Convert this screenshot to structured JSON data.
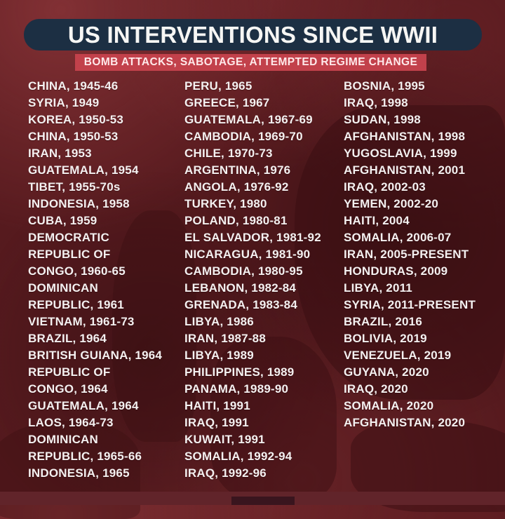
{
  "header": {
    "title": "US INTERVENTIONS SINCE WWII",
    "subtitle": "BOMB ATTACKS, SABOTAGE, ATTEMPTED REGIME CHANGE"
  },
  "colors": {
    "background_maroon": "#561a1e",
    "silhouette_dark": "#3a0e12",
    "title_bar_navy": "#1c2f43",
    "subtitle_bar_red": "#c2414b",
    "text_white": "#f4f0f0"
  },
  "list": {
    "columns": [
      {
        "lines": [
          "CHINA, 1945-46",
          "SYRIA, 1949",
          "KOREA, 1950-53",
          "CHINA, 1950-53",
          "IRAN, 1953",
          "GUATEMALA, 1954",
          "TIBET, 1955-70s",
          "INDONESIA, 1958",
          "CUBA, 1959",
          "DEMOCRATIC",
          "REPUBLIC OF",
          "CONGO, 1960-65",
          "DOMINICAN",
          "REPUBLIC, 1961",
          "VIETNAM, 1961-73",
          "BRAZIL, 1964",
          "BRITISH GUIANA, 1964",
          "REPUBLIC OF",
          "CONGO, 1964",
          "GUATEMALA, 1964",
          "LAOS, 1964-73",
          "DOMINICAN",
          "REPUBLIC, 1965-66",
          "INDONESIA, 1965"
        ]
      },
      {
        "lines": [
          "PERU, 1965",
          "GREECE, 1967",
          "GUATEMALA, 1967-69",
          "CAMBODIA, 1969-70",
          "CHILE, 1970-73",
          "ARGENTINA, 1976",
          "ANGOLA, 1976-92",
          "TURKEY, 1980",
          "POLAND, 1980-81",
          "EL SALVADOR, 1981-92",
          "NICARAGUA, 1981-90",
          "CAMBODIA, 1980-95",
          "LEBANON, 1982-84",
          "GRENADA, 1983-84",
          "LIBYA, 1986",
          "IRAN, 1987-88",
          "LIBYA, 1989",
          "PHILIPPINES, 1989",
          "PANAMA, 1989-90",
          "HAITI, 1991",
          "IRAQ, 1991",
          "KUWAIT, 1991",
          "SOMALIA, 1992-94",
          "IRAQ, 1992-96"
        ]
      },
      {
        "lines": [
          "BOSNIA, 1995",
          "IRAQ, 1998",
          "SUDAN, 1998",
          "AFGHANISTAN, 1998",
          "YUGOSLAVIA, 1999",
          "AFGHANISTAN, 2001",
          "IRAQ, 2002-03",
          "YEMEN, 2002-20",
          "HAITI, 2004",
          "SOMALIA, 2006-07",
          "IRAN, 2005-PRESENT",
          "HONDURAS, 2009",
          "LIBYA, 2011",
          "SYRIA, 2011-PRESENT",
          "BRAZIL, 2016",
          "BOLIVIA, 2019",
          "VENEZUELA, 2019",
          "GUYANA, 2020",
          "IRAQ, 2020",
          "SOMALIA, 2020",
          "AFGHANISTAN, 2020"
        ]
      }
    ]
  }
}
